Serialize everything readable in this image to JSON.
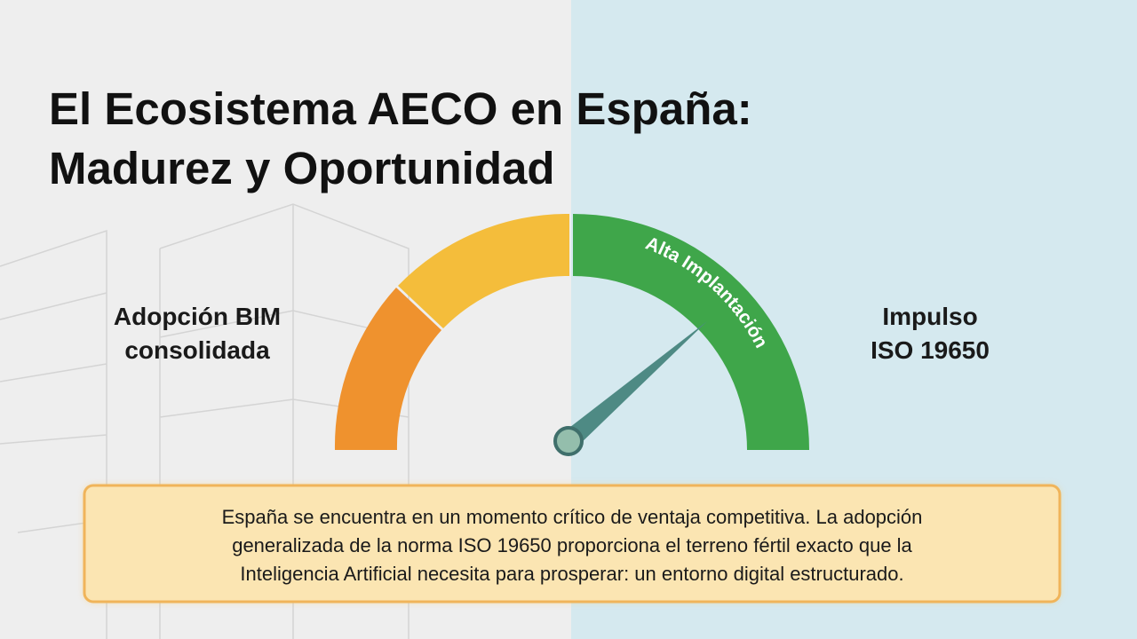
{
  "title": {
    "lines": [
      "El Ecosistema AECO en España:",
      "Madurez y Oportunidad"
    ]
  },
  "gauge": {
    "left_label": [
      "Adopción BIM",
      "consolidada"
    ],
    "right_label": [
      "Impulso",
      "ISO 19650"
    ],
    "arc_label": "Alta Implantación"
  },
  "callout": {
    "lines": [
      "España se encuentra en un momento crítico de ventaja competitiva. La adopción",
      "generalizada de la norma ISO 19650 proporciona el terreno fértil exacto que la",
      "Inteligencia Artificial necesita para prosperar: un entorno digital estructurado."
    ]
  }
}
